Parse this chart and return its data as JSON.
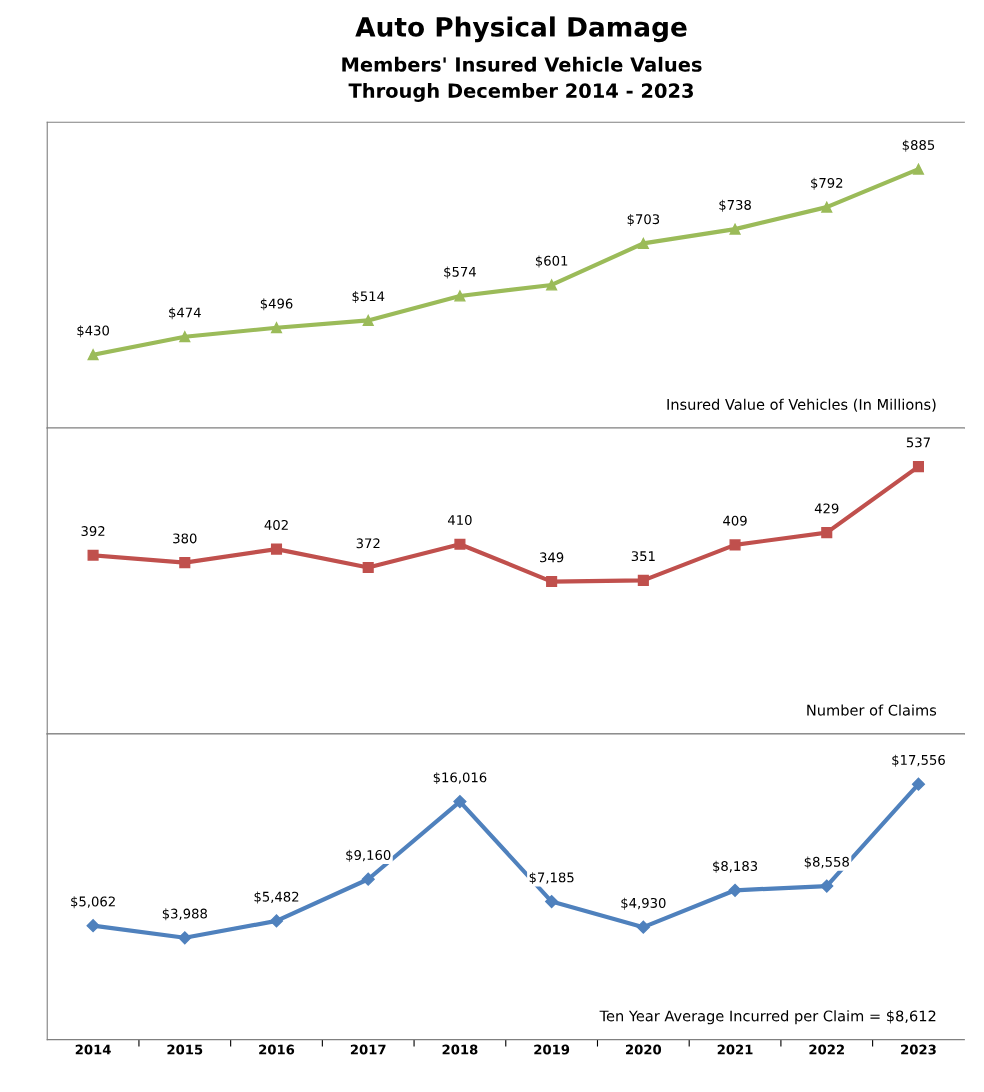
{
  "chart_data": [
    {
      "type": "line",
      "title": "Auto Physical Damage",
      "subtitle": "Members' Insured Vehicle Values\nThrough December 2014 - 2023",
      "categories": [
        "2014",
        "2015",
        "2016",
        "2017",
        "2018",
        "2019",
        "2020",
        "2021",
        "2022",
        "2023"
      ],
      "series": [
        {
          "color": "#9bbb59",
          "values": [
            430,
            474,
            496,
            514,
            574,
            601,
            703,
            738,
            792,
            885
          ],
          "value_labels": [
            "$430",
            "$474",
            "$496",
            "$514",
            "$574",
            "$601",
            "$703",
            "$738",
            "$792",
            "$885"
          ]
        }
      ],
      "marker": "triangle",
      "ylim": [
        250,
        1000
      ],
      "tick_labels": false,
      "grid": false,
      "legend": false,
      "annotations": [
        "Insured Value of Vehicles (In Millions)"
      ]
    },
    {
      "type": "line",
      "categories": [
        "2014",
        "2015",
        "2016",
        "2017",
        "2018",
        "2019",
        "2020",
        "2021",
        "2022",
        "2023"
      ],
      "series": [
        {
          "color": "#c0504d",
          "values": [
            392,
            380,
            402,
            372,
            410,
            349,
            351,
            409,
            429,
            537
          ]
        }
      ],
      "data_labels": true,
      "marker": "square",
      "ylim": [
        100,
        600
      ],
      "tick_labels": false,
      "grid": false,
      "legend": false,
      "annotations": [
        "Number of Claims"
      ]
    },
    {
      "type": "line",
      "categories": [
        "2014",
        "2015",
        "2016",
        "2017",
        "2018",
        "2019",
        "2020",
        "2021",
        "2022",
        "2023"
      ],
      "series": [
        {
          "color": "#4f81bd",
          "values": [
            5062,
            3988,
            5482,
            9160,
            16016,
            7185,
            4930,
            8183,
            8558,
            17556
          ],
          "value_labels": [
            "$5,062",
            "$3,988",
            "$5,482",
            "$9,160",
            "$16,016",
            "$7,185",
            "$4,930",
            "$8,183",
            "$8,558",
            "$17,556"
          ]
        }
      ],
      "marker": "diamond",
      "ylim": [
        -5000,
        22000
      ],
      "tick_labels": "x",
      "grid": false,
      "legend": false,
      "annotations": [
        "Ten Year Average Incurred per Claim = $8,612"
      ]
    }
  ]
}
